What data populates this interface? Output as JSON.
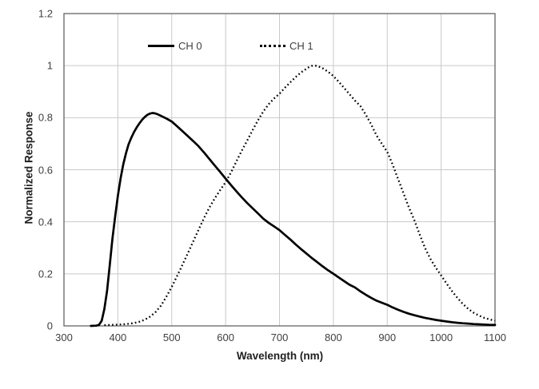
{
  "chart_data": {
    "type": "line",
    "title": "",
    "xlabel": "Wavelength (nm)",
    "ylabel": "Normalized Response",
    "xlim": [
      300,
      1100
    ],
    "ylim": [
      0,
      1.2
    ],
    "grid": true,
    "x_ticks": [
      [
        300,
        "300"
      ],
      [
        400,
        "400"
      ],
      [
        500,
        "500"
      ],
      [
        600,
        "600"
      ],
      [
        700,
        "700"
      ],
      [
        800,
        "800"
      ],
      [
        900,
        "900"
      ],
      [
        1000,
        "1000"
      ],
      [
        1100,
        "1100"
      ]
    ],
    "y_ticks": [
      [
        0,
        "0"
      ],
      [
        0.2,
        "0.2"
      ],
      [
        0.4,
        "0.4"
      ],
      [
        0.6,
        "0.6"
      ],
      [
        0.8,
        "0.8"
      ],
      [
        1,
        "1"
      ],
      [
        1.2,
        "1.2"
      ]
    ],
    "colors": {
      "grid": "#c9c9c9",
      "border": "#6e6e6e",
      "curve": "#000000",
      "tick_text": "#3f3f3f"
    },
    "legend": {
      "position": "top-inside",
      "entries": [
        {
          "label": "CH 0",
          "style": "solid"
        },
        {
          "label": "CH 1",
          "style": "dotted"
        }
      ]
    },
    "series": [
      {
        "name": "CH 0",
        "style": "solid",
        "points": [
          [
            350,
            0
          ],
          [
            360,
            0.001
          ],
          [
            365,
            0.004
          ],
          [
            370,
            0.02
          ],
          [
            375,
            0.065
          ],
          [
            380,
            0.135
          ],
          [
            385,
            0.235
          ],
          [
            390,
            0.335
          ],
          [
            395,
            0.42
          ],
          [
            400,
            0.5
          ],
          [
            405,
            0.565
          ],
          [
            410,
            0.62
          ],
          [
            415,
            0.663
          ],
          [
            420,
            0.698
          ],
          [
            425,
            0.723
          ],
          [
            430,
            0.745
          ],
          [
            435,
            0.763
          ],
          [
            440,
            0.778
          ],
          [
            445,
            0.792
          ],
          [
            450,
            0.803
          ],
          [
            455,
            0.811
          ],
          [
            460,
            0.816
          ],
          [
            465,
            0.818
          ],
          [
            470,
            0.816
          ],
          [
            475,
            0.812
          ],
          [
            480,
            0.807
          ],
          [
            490,
            0.797
          ],
          [
            500,
            0.785
          ],
          [
            510,
            0.767
          ],
          [
            520,
            0.748
          ],
          [
            530,
            0.729
          ],
          [
            540,
            0.71
          ],
          [
            550,
            0.69
          ],
          [
            560,
            0.666
          ],
          [
            570,
            0.641
          ],
          [
            580,
            0.616
          ],
          [
            590,
            0.591
          ],
          [
            600,
            0.566
          ],
          [
            610,
            0.541
          ],
          [
            620,
            0.517
          ],
          [
            630,
            0.494
          ],
          [
            640,
            0.472
          ],
          [
            650,
            0.452
          ],
          [
            660,
            0.432
          ],
          [
            670,
            0.412
          ],
          [
            680,
            0.396
          ],
          [
            690,
            0.382
          ],
          [
            700,
            0.368
          ],
          [
            710,
            0.35
          ],
          [
            720,
            0.332
          ],
          [
            730,
            0.313
          ],
          [
            740,
            0.295
          ],
          [
            750,
            0.278
          ],
          [
            760,
            0.261
          ],
          [
            770,
            0.245
          ],
          [
            780,
            0.229
          ],
          [
            790,
            0.214
          ],
          [
            800,
            0.2
          ],
          [
            810,
            0.186
          ],
          [
            820,
            0.172
          ],
          [
            830,
            0.158
          ],
          [
            840,
            0.148
          ],
          [
            850,
            0.133
          ],
          [
            860,
            0.12
          ],
          [
            870,
            0.108
          ],
          [
            880,
            0.097
          ],
          [
            890,
            0.089
          ],
          [
            900,
            0.081
          ],
          [
            910,
            0.071
          ],
          [
            920,
            0.062
          ],
          [
            930,
            0.054
          ],
          [
            940,
            0.047
          ],
          [
            950,
            0.041
          ],
          [
            960,
            0.036
          ],
          [
            970,
            0.031
          ],
          [
            980,
            0.027
          ],
          [
            990,
            0.023
          ],
          [
            1000,
            0.02
          ],
          [
            1010,
            0.017
          ],
          [
            1020,
            0.014
          ],
          [
            1030,
            0.012
          ],
          [
            1040,
            0.01
          ],
          [
            1050,
            0.009
          ],
          [
            1060,
            0.007
          ],
          [
            1070,
            0.006
          ],
          [
            1080,
            0.005
          ],
          [
            1090,
            0.004
          ],
          [
            1100,
            0.004
          ]
        ]
      },
      {
        "name": "CH 1",
        "style": "dotted",
        "points": [
          [
            375,
            0.003
          ],
          [
            390,
            0.004
          ],
          [
            400,
            0.005
          ],
          [
            410,
            0.006
          ],
          [
            420,
            0.008
          ],
          [
            430,
            0.011
          ],
          [
            440,
            0.016
          ],
          [
            450,
            0.024
          ],
          [
            460,
            0.036
          ],
          [
            470,
            0.053
          ],
          [
            480,
            0.078
          ],
          [
            490,
            0.112
          ],
          [
            500,
            0.15
          ],
          [
            510,
            0.192
          ],
          [
            520,
            0.235
          ],
          [
            530,
            0.28
          ],
          [
            540,
            0.325
          ],
          [
            550,
            0.37
          ],
          [
            560,
            0.415
          ],
          [
            570,
            0.455
          ],
          [
            580,
            0.49
          ],
          [
            590,
            0.522
          ],
          [
            600,
            0.552
          ],
          [
            610,
            0.59
          ],
          [
            620,
            0.632
          ],
          [
            630,
            0.673
          ],
          [
            640,
            0.712
          ],
          [
            650,
            0.752
          ],
          [
            660,
            0.79
          ],
          [
            670,
            0.824
          ],
          [
            680,
            0.852
          ],
          [
            690,
            0.874
          ],
          [
            700,
            0.892
          ],
          [
            710,
            0.915
          ],
          [
            720,
            0.936
          ],
          [
            730,
            0.956
          ],
          [
            740,
            0.974
          ],
          [
            750,
            0.988
          ],
          [
            755,
            0.995
          ],
          [
            760,
            0.999
          ],
          [
            765,
            1.0
          ],
          [
            770,
            0.999
          ],
          [
            780,
            0.99
          ],
          [
            790,
            0.977
          ],
          [
            800,
            0.96
          ],
          [
            810,
            0.938
          ],
          [
            820,
            0.914
          ],
          [
            830,
            0.89
          ],
          [
            840,
            0.866
          ],
          [
            850,
            0.845
          ],
          [
            860,
            0.812
          ],
          [
            870,
            0.775
          ],
          [
            880,
            0.732
          ],
          [
            890,
            0.7
          ],
          [
            900,
            0.668
          ],
          [
            910,
            0.62
          ],
          [
            920,
            0.565
          ],
          [
            930,
            0.51
          ],
          [
            940,
            0.456
          ],
          [
            950,
            0.408
          ],
          [
            960,
            0.352
          ],
          [
            970,
            0.3
          ],
          [
            980,
            0.258
          ],
          [
            990,
            0.224
          ],
          [
            1000,
            0.194
          ],
          [
            1010,
            0.163
          ],
          [
            1020,
            0.134
          ],
          [
            1030,
            0.108
          ],
          [
            1040,
            0.085
          ],
          [
            1050,
            0.066
          ],
          [
            1060,
            0.051
          ],
          [
            1070,
            0.04
          ],
          [
            1080,
            0.031
          ],
          [
            1090,
            0.025
          ],
          [
            1100,
            0.02
          ]
        ]
      }
    ]
  }
}
